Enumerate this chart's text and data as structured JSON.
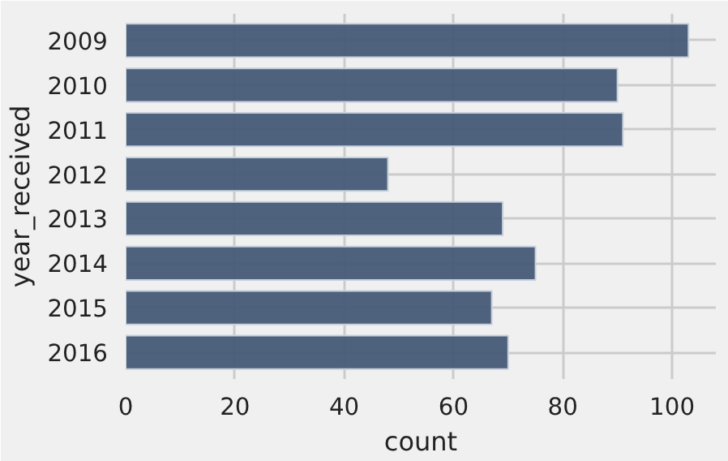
{
  "chart_data": {
    "type": "bar",
    "orientation": "horizontal",
    "categories": [
      "2009",
      "2010",
      "2011",
      "2012",
      "2013",
      "2014",
      "2015",
      "2016"
    ],
    "values": [
      103,
      90,
      91,
      48,
      69,
      75,
      67,
      70
    ],
    "color": "#465a76",
    "xlabel": "count",
    "ylabel": "year_received",
    "xlim": [
      0,
      108
    ],
    "xticks": [
      0,
      20,
      40,
      60,
      80,
      100
    ],
    "grid": true
  }
}
